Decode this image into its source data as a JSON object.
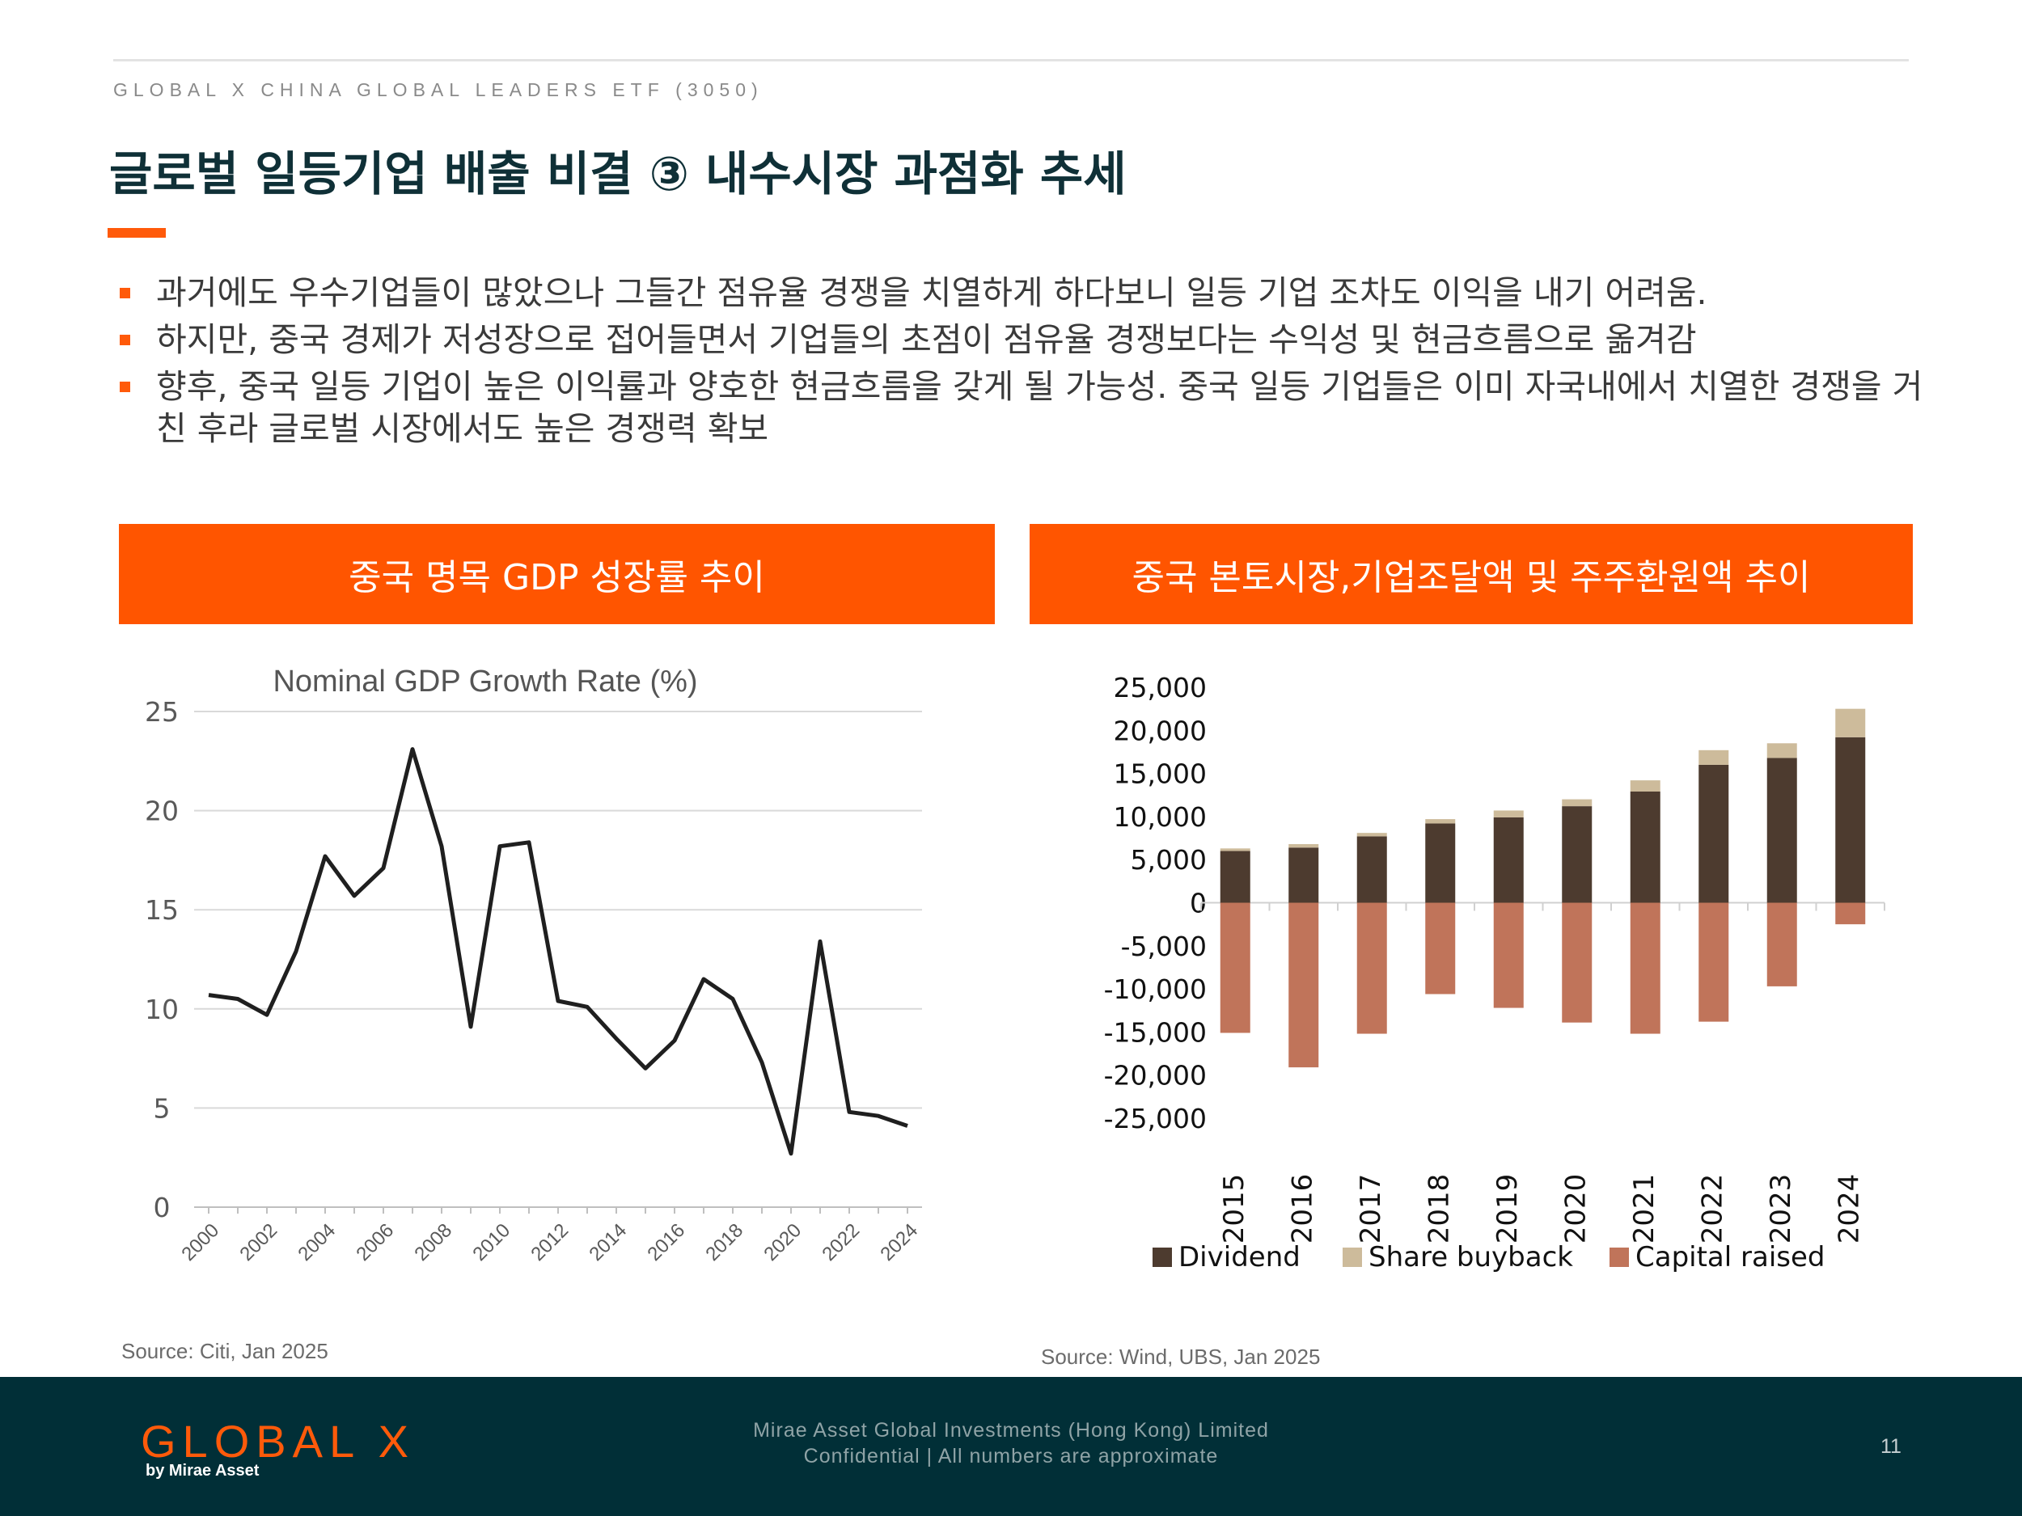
{
  "header": {
    "eyebrow": "GLOBAL X CHINA GLOBAL LEADERS ETF (3050)",
    "title": "글로벌 일등기업 배출 비결 ③ 내수시장 과점화 추세"
  },
  "bullets": [
    "과거에도 우수기업들이 많았으나 그들간 점유율 경쟁을 치열하게 하다보니 일등 기업 조차도 이익을 내기 어려움.",
    "하지만, 중국 경제가 저성장으로 접어들면서 기업들의 초점이 점유율 경쟁보다는 수익성 및 현금흐름으로 옮겨감",
    "향후, 중국 일등 기업이 높은 이익률과 양호한 현금흐름을 갖게 될 가능성. 중국 일등 기업들은 이미 자국내에서 치열한 경쟁을 거친 후라 글로벌 시장에서도 높은 경쟁력 확보"
  ],
  "panels": {
    "left_title": "중국 명목 GDP 성장률 추이",
    "right_title": "중국 본토시장,기업조달액 및 주주환원액 추이",
    "left_source": "Source: Citi, Jan 2025",
    "right_source": "Source: Wind, UBS, Jan 2025"
  },
  "chart_data": [
    {
      "type": "line",
      "title": "Nominal GDP Growth Rate (%)",
      "x": [
        2000,
        2001,
        2002,
        2003,
        2004,
        2005,
        2006,
        2007,
        2008,
        2009,
        2010,
        2011,
        2012,
        2013,
        2014,
        2015,
        2016,
        2017,
        2018,
        2019,
        2020,
        2021,
        2022,
        2023,
        2024
      ],
      "values": [
        10.7,
        10.5,
        9.7,
        12.9,
        17.7,
        15.7,
        17.1,
        23.1,
        18.2,
        9.1,
        18.2,
        18.4,
        10.4,
        10.1,
        8.5,
        7.0,
        8.4,
        11.5,
        10.5,
        7.3,
        2.7,
        13.4,
        4.8,
        4.6,
        4.1
      ],
      "x_tick_labels": [
        "2000",
        "2002",
        "2004",
        "2006",
        "2008",
        "2010",
        "2012",
        "2014",
        "2016",
        "2018",
        "2020",
        "2022",
        "2024"
      ],
      "y_ticks": [
        "0",
        "5",
        "10",
        "15",
        "20",
        "25"
      ],
      "ylim": [
        0,
        25
      ],
      "grid": true,
      "color": "#1f1f1f"
    },
    {
      "type": "bar",
      "stacked": true,
      "categories": [
        "2015",
        "2016",
        "2017",
        "2018",
        "2019",
        "2020",
        "2021",
        "2022",
        "2023",
        "2024"
      ],
      "series": [
        {
          "name": "Dividend",
          "color": "#4d3b2f",
          "values": [
            6000,
            6400,
            7700,
            9200,
            9900,
            11200,
            12900,
            16000,
            16800,
            19200
          ]
        },
        {
          "name": "Share buyback",
          "color": "#cdbb9b",
          "values": [
            300,
            400,
            400,
            500,
            800,
            800,
            1300,
            1700,
            1700,
            3300
          ]
        },
        {
          "name": "Capital raised",
          "color": "#c0745a",
          "values": [
            -15100,
            -19100,
            -15200,
            -10600,
            -12200,
            -13900,
            -15200,
            -13800,
            -9700,
            -2500
          ]
        }
      ],
      "y_ticks": [
        "25,000",
        "20,000",
        "15,000",
        "10,000",
        "5,000",
        "0",
        "-5,000",
        "-10,000",
        "-15,000",
        "-20,000",
        "-25,000"
      ],
      "ylim": [
        -25000,
        25000
      ],
      "grid": false,
      "legend_position": "bottom"
    }
  ],
  "footer": {
    "logo": "GLOBAL X",
    "logo_sub": "by Mirae Asset",
    "company": "Mirae Asset Global Investments (Hong Kong) Limited",
    "note": "Confidential | All numbers are approximate",
    "page": "11"
  }
}
